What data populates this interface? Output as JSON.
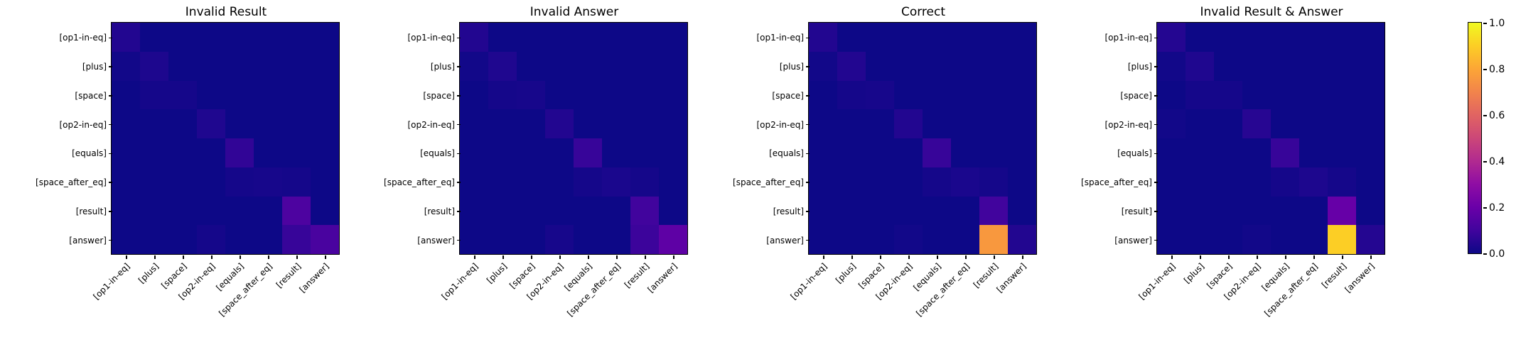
{
  "chart_data": {
    "type": "heatmap",
    "colormap": "plasma",
    "vmin": 0.0,
    "vmax": 1.0,
    "grid": false,
    "labels": [
      "[op1-in-eq]",
      "[plus]",
      "[space]",
      "[op2-in-eq]",
      "[equals]",
      "[space_after_eq]",
      "[result]",
      "[answer]"
    ],
    "panels": [
      {
        "title": "Invalid Result",
        "matrix": [
          [
            0.04,
            0,
            0,
            0,
            0,
            0,
            0,
            0
          ],
          [
            0.01,
            0.03,
            0,
            0,
            0,
            0,
            0,
            0
          ],
          [
            0,
            0.015,
            0.015,
            0,
            0,
            0,
            0,
            0
          ],
          [
            0,
            0,
            0,
            0.035,
            0,
            0,
            0,
            0
          ],
          [
            0,
            0,
            0,
            0,
            0.07,
            0,
            0,
            0
          ],
          [
            0,
            0,
            0,
            0,
            0.015,
            0.02,
            0.015,
            0
          ],
          [
            0,
            0,
            0,
            0,
            0,
            0,
            0.13,
            0
          ],
          [
            0,
            0,
            0,
            0.015,
            0,
            0,
            0.08,
            0.12
          ]
        ]
      },
      {
        "title": "Invalid Answer",
        "matrix": [
          [
            0.04,
            0,
            0,
            0,
            0,
            0,
            0,
            0
          ],
          [
            0.01,
            0.035,
            0,
            0,
            0,
            0,
            0,
            0
          ],
          [
            0,
            0.015,
            0.02,
            0,
            0,
            0,
            0,
            0
          ],
          [
            0,
            0,
            0,
            0.04,
            0,
            0,
            0,
            0
          ],
          [
            0,
            0,
            0,
            0,
            0.08,
            0,
            0,
            0
          ],
          [
            0,
            0,
            0,
            0,
            0.015,
            0.025,
            0.015,
            0
          ],
          [
            0,
            0,
            0,
            0,
            0,
            0,
            0.1,
            0
          ],
          [
            0,
            0,
            0,
            0.02,
            0,
            0,
            0.09,
            0.17
          ]
        ]
      },
      {
        "title": "Correct",
        "matrix": [
          [
            0.04,
            0,
            0,
            0,
            0,
            0,
            0,
            0
          ],
          [
            0.01,
            0.04,
            0,
            0,
            0,
            0,
            0,
            0
          ],
          [
            0,
            0.015,
            0.02,
            0,
            0,
            0,
            0,
            0
          ],
          [
            0,
            0,
            0,
            0.04,
            0,
            0,
            0,
            0
          ],
          [
            0,
            0,
            0,
            0,
            0.08,
            0,
            0,
            0
          ],
          [
            0,
            0,
            0,
            0,
            0.015,
            0.025,
            0.015,
            0
          ],
          [
            0,
            0,
            0,
            0,
            0,
            0,
            0.1,
            0
          ],
          [
            0,
            0,
            0,
            0.01,
            0,
            0,
            0.76,
            0.04
          ]
        ]
      },
      {
        "title": "Invalid Result & Answer",
        "matrix": [
          [
            0.045,
            0,
            0,
            0,
            0,
            0,
            0,
            0
          ],
          [
            0.01,
            0.035,
            0,
            0,
            0,
            0,
            0,
            0
          ],
          [
            0,
            0.015,
            0.015,
            0,
            0,
            0,
            0,
            0
          ],
          [
            0.01,
            0,
            0,
            0.05,
            0,
            0,
            0,
            0
          ],
          [
            0,
            0,
            0,
            0,
            0.08,
            0,
            0,
            0
          ],
          [
            0,
            0,
            0,
            0,
            0.015,
            0.03,
            0.015,
            0
          ],
          [
            0,
            0,
            0,
            0,
            0,
            0,
            0.19,
            0
          ],
          [
            0,
            0,
            0,
            0.01,
            0,
            0,
            0.9,
            0.045
          ]
        ]
      }
    ],
    "colorbar": {
      "tick_labels": [
        "0.0",
        "0.2",
        "0.4",
        "0.6",
        "0.8",
        "1.0"
      ],
      "tick_values": [
        0.0,
        0.2,
        0.4,
        0.6,
        0.8,
        1.0
      ],
      "position": "right"
    },
    "colors": {
      "figure_background": "#ffffff",
      "axis_line": "#000000",
      "text": "#000000",
      "cmap_stops": [
        "#0d0887",
        "#41049d",
        "#6a00a8",
        "#8f0da4",
        "#b12a90",
        "#cc4778",
        "#e16462",
        "#f2844b",
        "#fca636",
        "#fcce25",
        "#f0f921"
      ]
    }
  }
}
